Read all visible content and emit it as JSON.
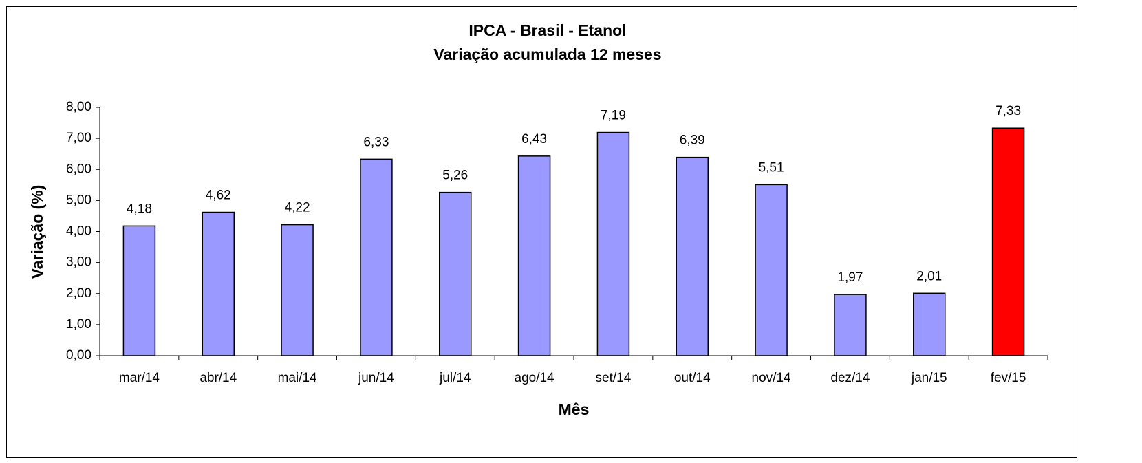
{
  "chart_data": {
    "type": "bar",
    "title": "IPCA - Brasil - Etanol",
    "subtitle": "Variação acumulada 12 meses",
    "x_label": "Mês",
    "y_label": "Variação (%)",
    "categories": [
      "mar/14",
      "abr/14",
      "mai/14",
      "jun/14",
      "jul/14",
      "ago/14",
      "set/14",
      "out/14",
      "nov/14",
      "dez/14",
      "jan/15",
      "fev/15"
    ],
    "values": [
      4.18,
      4.62,
      4.22,
      6.33,
      5.26,
      6.43,
      7.19,
      6.39,
      5.51,
      1.97,
      2.01,
      7.33
    ],
    "value_labels": [
      "4,18",
      "4,62",
      "4,22",
      "6,33",
      "5,26",
      "6,43",
      "7,19",
      "6,39",
      "5,51",
      "1,97",
      "2,01",
      "7,33"
    ],
    "colors": [
      "#9999ff",
      "#9999ff",
      "#9999ff",
      "#9999ff",
      "#9999ff",
      "#9999ff",
      "#9999ff",
      "#9999ff",
      "#9999ff",
      "#9999ff",
      "#9999ff",
      "#ff0000"
    ],
    "ylim": [
      0,
      8
    ],
    "yticks": [
      {
        "value": 0,
        "label": "0,00"
      },
      {
        "value": 1,
        "label": "1,00"
      },
      {
        "value": 2,
        "label": "2,00"
      },
      {
        "value": 3,
        "label": "3,00"
      },
      {
        "value": 4,
        "label": "4,00"
      },
      {
        "value": 5,
        "label": "5,00"
      },
      {
        "value": 6,
        "label": "6,00"
      },
      {
        "value": 7,
        "label": "7,00"
      },
      {
        "value": 8,
        "label": "8,00"
      }
    ],
    "grid": false
  }
}
